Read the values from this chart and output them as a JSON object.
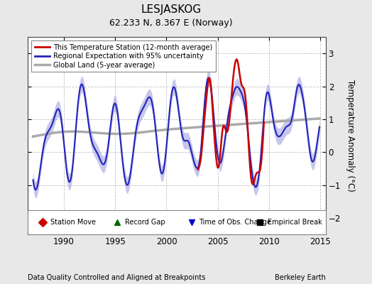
{
  "title": "LESJASKOG",
  "subtitle": "62.233 N, 8.367 E (Norway)",
  "ylabel": "Temperature Anomaly (°C)",
  "xlabel_bottom_left": "Data Quality Controlled and Aligned at Breakpoints",
  "xlabel_bottom_right": "Berkeley Earth",
  "xlim": [
    1986.5,
    2015.5
  ],
  "ylim": [
    -2.5,
    3.5
  ],
  "yticks": [
    -2,
    -1,
    0,
    1,
    2,
    3
  ],
  "xticks": [
    1990,
    1995,
    2000,
    2005,
    2010,
    2015
  ],
  "bg_color": "#e8e8e8",
  "plot_bg_color": "#ffffff",
  "regional_color": "#2222bb",
  "regional_fill_color": "#9999dd",
  "station_color": "#cc0000",
  "global_color": "#aaaaaa",
  "global_lw": 2.5,
  "legend_items": [
    {
      "label": "This Temperature Station (12-month average)",
      "color": "#cc0000",
      "lw": 2
    },
    {
      "label": "Regional Expectation with 95% uncertainty",
      "color": "#2222bb",
      "lw": 2
    },
    {
      "label": "Global Land (5-year average)",
      "color": "#aaaaaa",
      "lw": 2.5
    }
  ],
  "marker_legend": [
    {
      "label": "Station Move",
      "marker": "D",
      "color": "#cc0000"
    },
    {
      "label": "Record Gap",
      "marker": "^",
      "color": "#006600"
    },
    {
      "label": "Time of Obs. Change",
      "marker": "v",
      "color": "#0000cc"
    },
    {
      "label": "Empirical Break",
      "marker": "s",
      "color": "#000000"
    }
  ]
}
